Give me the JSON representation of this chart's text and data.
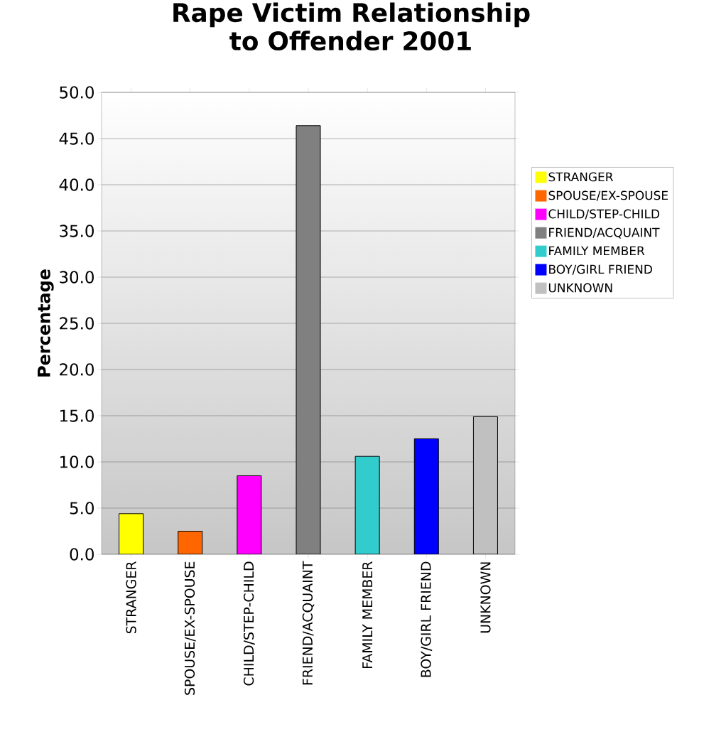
{
  "chart_data": {
    "type": "bar",
    "title": "Rape Victim Relationship to Offender 2001",
    "ylabel": "Percentage",
    "categories": [
      "STRANGER",
      "SPOUSE/EX-SPOUSE",
      "CHILD/STEP-CHILD",
      "FRIEND/ACQUAINT",
      "FAMILY MEMBER",
      "BOY/GIRL FRIEND",
      "UNKNOWN"
    ],
    "series": [
      {
        "name": "STRANGER",
        "color": "#ffff00",
        "values": [
          4.4,
          null,
          null,
          null,
          null,
          null,
          null
        ]
      },
      {
        "name": "SPOUSE/EX-SPOUSE",
        "color": "#ff6600",
        "values": [
          null,
          2.5,
          null,
          null,
          null,
          null,
          null
        ]
      },
      {
        "name": "CHILD/STEP-CHILD",
        "color": "#ff00ff",
        "values": [
          null,
          null,
          8.5,
          null,
          null,
          null,
          null
        ]
      },
      {
        "name": "FRIEND/ACQUAINT",
        "color": "#808080",
        "values": [
          null,
          null,
          null,
          46.4,
          null,
          null,
          null
        ]
      },
      {
        "name": "FAMILY MEMBER",
        "color": "#33cccc",
        "values": [
          null,
          null,
          null,
          null,
          10.6,
          null,
          null
        ]
      },
      {
        "name": "BOY/GIRL FRIEND",
        "color": "#0000ff",
        "values": [
          null,
          null,
          null,
          null,
          null,
          12.5,
          null
        ]
      },
      {
        "name": "UNKNOWN",
        "color": "#c0c0c0",
        "values": [
          null,
          null,
          null,
          null,
          null,
          null,
          14.9
        ]
      }
    ],
    "ylim": [
      0,
      50
    ],
    "yticks": [
      {
        "value": 0,
        "label": "0.0"
      },
      {
        "value": 5,
        "label": "5.0"
      },
      {
        "value": 10,
        "label": "10.0"
      },
      {
        "value": 15,
        "label": "15.0"
      },
      {
        "value": 20,
        "label": "20.0"
      },
      {
        "value": 25,
        "label": "25.0"
      },
      {
        "value": 30,
        "label": "30.0"
      },
      {
        "value": 35,
        "label": "35.0"
      },
      {
        "value": 40,
        "label": "40.0"
      },
      {
        "value": 45,
        "label": "45.0"
      },
      {
        "value": 50,
        "label": "50.0"
      }
    ],
    "grid": "y",
    "legend": "right"
  }
}
